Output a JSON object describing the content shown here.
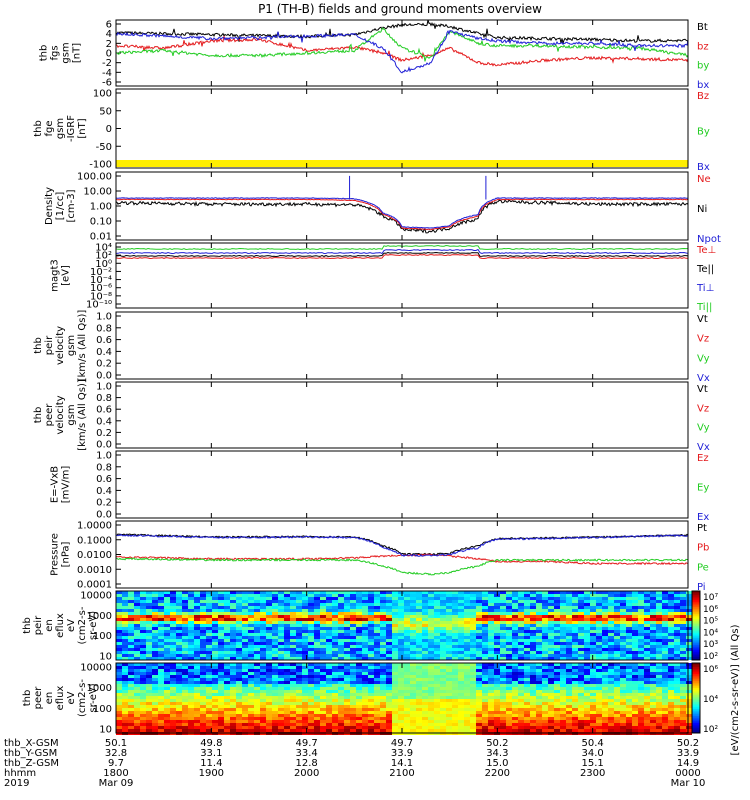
{
  "title": "P1 (TH-B) fields and ground moments overview",
  "colors": {
    "black": "#000000",
    "red": "#e41a1c",
    "green": "#22cc22",
    "blue": "#1f1fd6",
    "yellow": "#ffee00"
  },
  "panels": [
    {
      "key": "fgs",
      "ylabel_lines": [
        "thb",
        "fgs",
        "gsm",
        "[nT]"
      ],
      "ticks": [
        "6",
        "4",
        "2",
        "0",
        "-2",
        "-4",
        "-6"
      ],
      "legend": [
        {
          "text": "Bt",
          "color": "black"
        },
        {
          "text": "bz",
          "color": "red"
        },
        {
          "text": "by",
          "color": "green"
        },
        {
          "text": "bx",
          "color": "blue"
        }
      ]
    },
    {
      "key": "fge",
      "ylabel_lines": [
        "thb",
        "fge",
        "gsm",
        "-IGRF",
        "[nT]"
      ],
      "ticks": [
        "100",
        "50",
        "0",
        "-50",
        "-100"
      ],
      "legend": [
        {
          "text": "Bz",
          "color": "red"
        },
        {
          "text": "By",
          "color": "green"
        },
        {
          "text": "Bx",
          "color": "blue"
        }
      ]
    },
    {
      "key": "density",
      "ylabel_lines": [
        "Density",
        "[1/cc]",
        "[cm-3]"
      ],
      "ticks": [
        "100.00",
        "10.00",
        "1.00",
        "0.10",
        "0.01"
      ],
      "legend": [
        {
          "text": "Ne",
          "color": "red"
        },
        {
          "text": "Ni",
          "color": "black"
        },
        {
          "text": "Npot",
          "color": "blue"
        }
      ]
    },
    {
      "key": "temp",
      "ylabel_lines": [
        "magt3",
        "[eV]"
      ],
      "ticks": [
        "10⁴",
        "10²",
        "10⁰",
        "10⁻²",
        "10⁻⁴",
        "10⁻⁶",
        "10⁻⁸",
        "10⁻¹⁰"
      ],
      "legend": [
        {
          "text": "Te⊥",
          "color": "red"
        },
        {
          "text": "Te||",
          "color": "black"
        },
        {
          "text": "Ti⊥",
          "color": "blue"
        },
        {
          "text": "Ti||",
          "color": "green"
        }
      ]
    },
    {
      "key": "peir_vel",
      "ylabel_lines": [
        "thb",
        "peir",
        "velocity",
        "gsm",
        "[km/s (All Qs)]"
      ],
      "ticks": [
        "1.0",
        "0.8",
        "0.6",
        "0.4",
        "0.2",
        "0.0"
      ],
      "legend": [
        {
          "text": "Vt",
          "color": "black"
        },
        {
          "text": "Vz",
          "color": "red"
        },
        {
          "text": "Vy",
          "color": "green"
        },
        {
          "text": "Vx",
          "color": "blue"
        }
      ]
    },
    {
      "key": "peer_vel",
      "ylabel_lines": [
        "thb",
        "peer",
        "velocity",
        "gsm",
        "[km/s (All Qs)]"
      ],
      "ticks": [
        "1.0",
        "0.8",
        "0.6",
        "0.4",
        "0.2",
        "0.0"
      ],
      "legend": [
        {
          "text": "Vt",
          "color": "black"
        },
        {
          "text": "Vz",
          "color": "red"
        },
        {
          "text": "Vy",
          "color": "green"
        },
        {
          "text": "Vx",
          "color": "blue"
        }
      ]
    },
    {
      "key": "efield",
      "ylabel_lines": [
        "E=-VxB",
        "[mV/m]"
      ],
      "ticks": [
        "1.0",
        "0.8",
        "0.6",
        "0.4",
        "0.2",
        "0.0"
      ],
      "legend": [
        {
          "text": "Ez",
          "color": "red"
        },
        {
          "text": "Ey",
          "color": "green"
        },
        {
          "text": "Ex",
          "color": "blue"
        }
      ]
    },
    {
      "key": "pressure",
      "ylabel_lines": [
        "Pressure",
        "[nPa]"
      ],
      "ticks": [
        "1.0000",
        "0.1000",
        "0.0100",
        "0.0010",
        "0.0001"
      ],
      "legend": [
        {
          "text": "Pt",
          "color": "black"
        },
        {
          "text": "Pb",
          "color": "red"
        },
        {
          "text": "Pe",
          "color": "green"
        },
        {
          "text": "Pi",
          "color": "blue"
        }
      ]
    },
    {
      "key": "peir_spec",
      "ylabel_lines": [
        "thb",
        "peir",
        "en",
        "eflux",
        "eV",
        "(cm2-s-",
        "sr-eV)"
      ],
      "ticks": [
        "10000",
        "1000",
        "100",
        "10"
      ],
      "legend": []
    },
    {
      "key": "peer_spec",
      "ylabel_lines": [
        "thb",
        "peer",
        "en",
        "eflux",
        "eV",
        "(cm2-s-",
        "sr-eV)"
      ],
      "ticks": [
        "10000",
        "1000",
        "100",
        "10"
      ],
      "legend": []
    }
  ],
  "colorbar": {
    "label": "[eV/(cm2-s-sr-eV)] (All Qs)",
    "ticks_top": [
      "10⁷",
      "10⁶",
      "10⁵",
      "10⁴",
      "10³",
      "10²"
    ],
    "ticks_bottom": [
      "10⁶",
      "10⁴",
      "10²"
    ]
  },
  "xaxis": {
    "row_labels": [
      "thb_X-GSM",
      "thb_Y-GSM",
      "thb_Z-GSM",
      "hhmm",
      "2019"
    ],
    "columns": [
      {
        "x": "50.1",
        "y": "32.8",
        "z": "9.7",
        "hhmm": "1800",
        "date": "Mar 09"
      },
      {
        "x": "49.8",
        "y": "33.1",
        "z": "11.4",
        "hhmm": "1900",
        "date": ""
      },
      {
        "x": "49.7",
        "y": "33.4",
        "z": "12.8",
        "hhmm": "2000",
        "date": ""
      },
      {
        "x": "49.7",
        "y": "33.9",
        "z": "14.1",
        "hhmm": "2100",
        "date": ""
      },
      {
        "x": "50.2",
        "y": "34.3",
        "z": "15.0",
        "hhmm": "2200",
        "date": ""
      },
      {
        "x": "50.4",
        "y": "34.0",
        "z": "15.1",
        "hhmm": "2300",
        "date": ""
      },
      {
        "x": "50.2",
        "y": "33.9",
        "z": "14.9",
        "hhmm": "0000",
        "date": "Mar 10"
      }
    ]
  },
  "chart_data": {
    "type": "line",
    "title": "P1 (TH-B) fields and ground moments overview",
    "x_range_hhmm": [
      "1800",
      "0000"
    ],
    "series": [
      {
        "name": "Bt",
        "panel": "fgs",
        "unit": "nT",
        "t": [
          18.0,
          18.5,
          19.0,
          19.5,
          20.0,
          20.5,
          20.8,
          21.0,
          21.3,
          21.5,
          21.8,
          22.0,
          22.5,
          23.0,
          23.5,
          24.0
        ],
        "values": [
          4.2,
          4.0,
          3.8,
          3.6,
          3.4,
          3.8,
          5.2,
          5.8,
          5.9,
          5.5,
          4.0,
          3.2,
          3.0,
          2.8,
          2.5,
          2.6
        ]
      },
      {
        "name": "bz",
        "panel": "fgs",
        "unit": "nT",
        "t": [
          18.0,
          18.5,
          19.0,
          19.5,
          20.0,
          20.5,
          20.8,
          21.0,
          21.3,
          21.5,
          21.8,
          22.0,
          22.5,
          23.0,
          23.5,
          24.0
        ],
        "values": [
          1.5,
          1.0,
          2.5,
          2.8,
          0.5,
          1.2,
          0.0,
          -1.5,
          -0.5,
          1.0,
          -2.0,
          -2.5,
          -1.5,
          -1.0,
          -1.2,
          -1.5
        ]
      },
      {
        "name": "by",
        "panel": "fgs",
        "unit": "nT",
        "t": [
          18.0,
          18.5,
          19.0,
          19.5,
          20.0,
          20.5,
          20.8,
          21.0,
          21.3,
          21.5,
          21.8,
          22.0,
          22.5,
          23.0,
          23.5,
          24.0
        ],
        "values": [
          0.0,
          0.5,
          -0.5,
          -0.5,
          0.0,
          0.5,
          5.0,
          1.0,
          -1.0,
          4.5,
          2.0,
          1.5,
          1.5,
          1.2,
          1.0,
          -0.5
        ]
      },
      {
        "name": "bx",
        "panel": "fgs",
        "unit": "nT",
        "t": [
          18.0,
          18.5,
          19.0,
          19.5,
          20.0,
          20.5,
          20.8,
          21.0,
          21.3,
          21.5,
          21.8,
          22.0,
          22.5,
          23.0,
          23.5,
          24.0
        ],
        "values": [
          4.0,
          3.5,
          3.0,
          3.2,
          3.5,
          3.8,
          1.0,
          -4.0,
          -2.0,
          4.5,
          3.0,
          2.5,
          2.0,
          2.0,
          1.5,
          1.5
        ]
      },
      {
        "name": "Ni",
        "panel": "density",
        "unit": "cm-3",
        "t": [
          18.0,
          19.0,
          20.0,
          20.5,
          20.8,
          21.0,
          21.3,
          21.5,
          21.8,
          22.0,
          22.5,
          23.0,
          24.0
        ],
        "values": [
          2.5,
          2.0,
          2.0,
          1.8,
          0.3,
          0.04,
          0.03,
          0.05,
          0.2,
          3.0,
          2.5,
          2.0,
          2.0
        ]
      },
      {
        "name": "Ne",
        "panel": "density",
        "unit": "cm-3",
        "t": [
          18.0,
          19.0,
          20.0,
          20.5,
          20.8,
          21.0,
          21.3,
          21.5,
          21.8,
          22.0,
          22.5,
          23.0,
          24.0
        ],
        "values": [
          4.0,
          4.0,
          4.0,
          3.5,
          0.4,
          0.05,
          0.04,
          0.06,
          0.3,
          4.0,
          4.0,
          4.0,
          4.0
        ]
      },
      {
        "name": "Npot",
        "panel": "density",
        "unit": "cm-3",
        "t": [
          18.0,
          19.0,
          20.0,
          20.5,
          20.8,
          21.0,
          21.3,
          21.5,
          21.8,
          22.0,
          22.5,
          23.0,
          24.0
        ],
        "values": [
          5.0,
          5.0,
          5.0,
          4.5,
          0.5,
          0.06,
          0.05,
          0.07,
          0.4,
          5.0,
          5.0,
          5.0,
          5.0
        ]
      },
      {
        "name": "Pt",
        "panel": "pressure",
        "unit": "nPa",
        "t": [
          18.0,
          19.0,
          20.0,
          20.5,
          20.8,
          21.0,
          21.3,
          21.5,
          21.8,
          22.0,
          22.5,
          23.0,
          24.0
        ],
        "values": [
          0.22,
          0.15,
          0.16,
          0.15,
          0.04,
          0.012,
          0.012,
          0.013,
          0.04,
          0.12,
          0.13,
          0.15,
          0.2
        ]
      },
      {
        "name": "Pb",
        "panel": "pressure",
        "unit": "nPa",
        "t": [
          18.0,
          19.0,
          20.0,
          20.5,
          20.8,
          21.0,
          21.3,
          21.5,
          21.8,
          22.0,
          22.5,
          23.0,
          24.0
        ],
        "values": [
          0.008,
          0.006,
          0.006,
          0.007,
          0.009,
          0.01,
          0.011,
          0.009,
          0.006,
          0.004,
          0.004,
          0.003,
          0.003
        ]
      },
      {
        "name": "Pe",
        "panel": "pressure",
        "unit": "nPa",
        "t": [
          18.0,
          19.0,
          20.0,
          20.5,
          20.8,
          21.0,
          21.3,
          21.5,
          21.8,
          22.0,
          22.5,
          23.0,
          24.0
        ],
        "values": [
          0.006,
          0.005,
          0.005,
          0.005,
          0.002,
          0.0008,
          0.0006,
          0.0008,
          0.002,
          0.005,
          0.005,
          0.005,
          0.005
        ]
      },
      {
        "name": "Pi",
        "panel": "pressure",
        "unit": "nPa",
        "t": [
          18.0,
          19.0,
          20.0,
          20.5,
          20.8,
          21.0,
          21.3,
          21.5,
          21.8,
          22.0,
          22.5,
          23.0,
          24.0
        ],
        "values": [
          0.2,
          0.14,
          0.15,
          0.14,
          0.03,
          0.01,
          0.01,
          0.011,
          0.03,
          0.11,
          0.12,
          0.14,
          0.19
        ]
      }
    ]
  }
}
